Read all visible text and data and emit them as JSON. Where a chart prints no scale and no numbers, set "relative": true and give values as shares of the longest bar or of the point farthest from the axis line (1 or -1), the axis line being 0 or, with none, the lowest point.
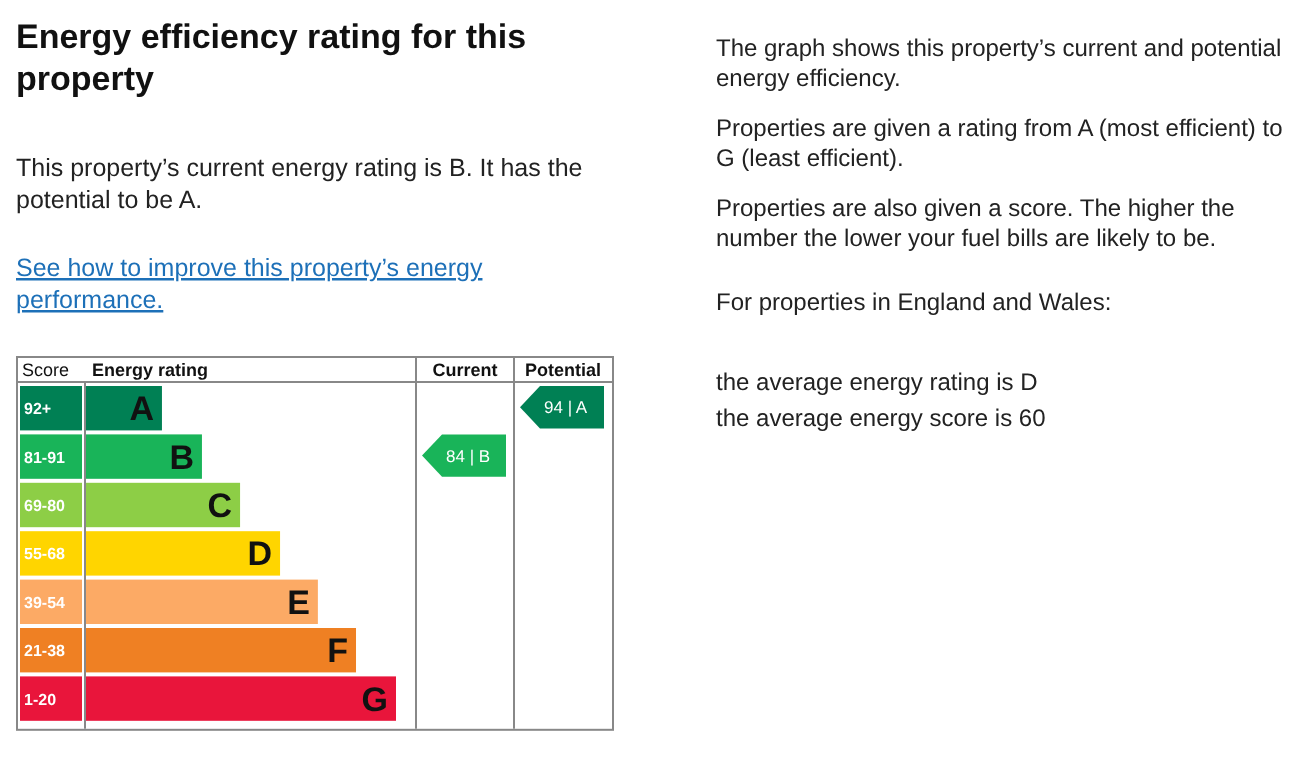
{
  "chart_data": {
    "type": "bar",
    "orientation": "horizontal",
    "relative": true,
    "title": "Energy efficiency rating for this property",
    "ylabel": "Score",
    "xlabel": "Energy rating",
    "categories": [
      "92+",
      "81-91",
      "69-80",
      "55-68",
      "39-54",
      "21-38",
      "1-20"
    ],
    "values": [
      0.245,
      0.374,
      0.497,
      0.626,
      0.748,
      0.871,
      1
    ],
    "colors": [
      "#008054",
      "#19b459",
      "#8dce46",
      "#ffd500",
      "#fcaa65",
      "#ef8023",
      "#e9153b"
    ],
    "annotations": [
      "This property’s current energy rating is B. It has the potential to be A.",
      "See how to improve this property’s energy performance.",
      "Current",
      "Potential",
      "The graph shows this property’s current and potential energy efficiency.",
      "Properties are given a rating from A (most efficient) to G (least efficient).",
      "Properties are also given a score. The higher the number the lower your fuel bills are likely to be.",
      "For properties in England and Wales:",
      "the average energy rating is D",
      "the average energy score is 60",
      "84 | B",
      "94 | A",
      "A",
      "B",
      "C",
      "D",
      "E",
      "F",
      "G"
    ]
  }
}
